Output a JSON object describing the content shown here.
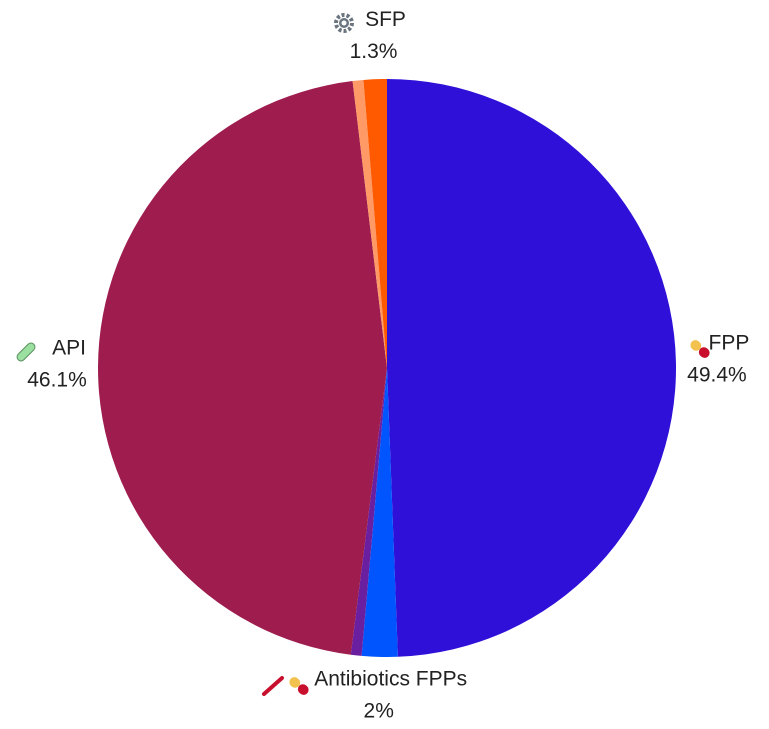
{
  "chart_data": {
    "type": "pie",
    "categories": [
      "FPP",
      "Antibiotics FPPs",
      null,
      "API",
      null,
      "SFP"
    ],
    "values": [
      49.4,
      2,
      0.6,
      46.1,
      0.6,
      1.3
    ],
    "value_labels": [
      "49.4%",
      "2%",
      null,
      "46.1%",
      null,
      "1.3%"
    ],
    "colors": [
      "#2e10d8",
      "#0055ff",
      "#6a1fa0",
      "#9e1c4e",
      "#ff9a66",
      "#ff5a00"
    ]
  }
}
